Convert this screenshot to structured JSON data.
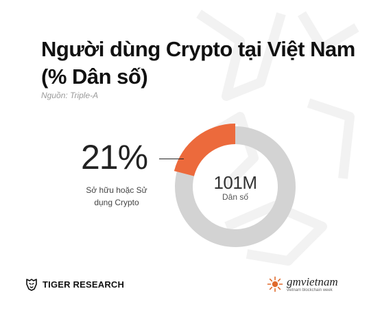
{
  "title_lines": [
    "Người dùng Crypto tại Việt Nam",
    "(% Dân số)"
  ],
  "source": "Nguồn: Triple-A",
  "chart_data": {
    "type": "pie",
    "donut": true,
    "total": {
      "value": "101M",
      "label": "Dân số"
    },
    "slices": [
      {
        "label": "Sở hữu hoặc Sử dụng Crypto",
        "value": 21,
        "color": "#EC6A3C"
      },
      {
        "label": "",
        "value": 79,
        "color": "#D3D3D3"
      }
    ],
    "highlight": {
      "value_text": "21%",
      "label_lines": [
        "Sở hữu hoặc Sử",
        "dụng Crypto"
      ]
    }
  },
  "footer": {
    "left_brand": "TIGER RESEARCH",
    "right_brand": "gmvietnam",
    "right_tagline": "vietnam blockchain week"
  },
  "colors": {
    "accent": "#EC6A3C",
    "remainder": "#D3D3D3",
    "watermark": "#F2F2F2"
  }
}
